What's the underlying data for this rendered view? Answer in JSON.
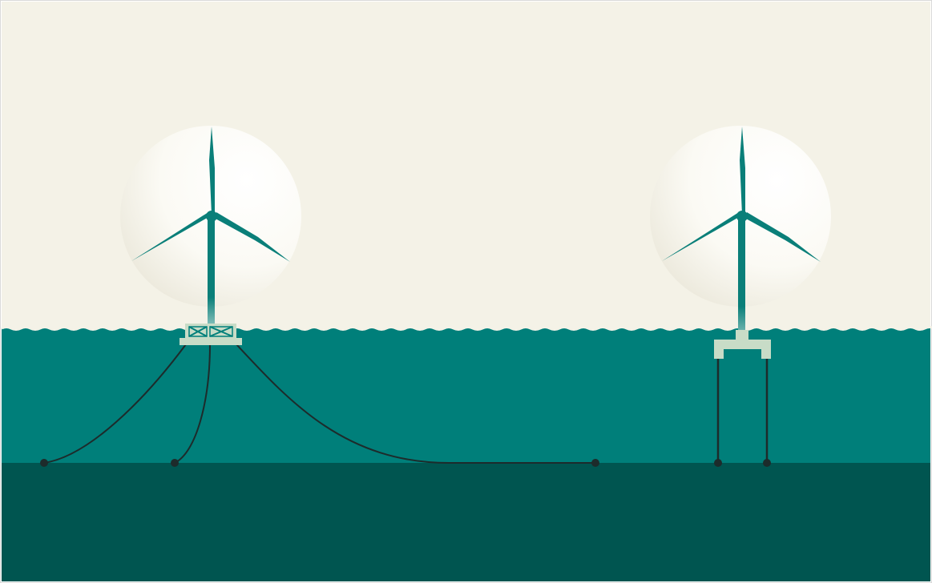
{
  "colors": {
    "sky": "#f4f2e7",
    "sea": "#007f7a",
    "seabed": "#005550",
    "turbine": "#0a7f79",
    "platform": "#c8dcc7",
    "mooring_line": "#1d2b2b",
    "anchor": "#1d2b2b",
    "rotor_glow": "#ffffff",
    "frame": "#d9d9d9"
  },
  "icons": {
    "left_turbine": "floating-turbine-icon",
    "right_turbine": "tension-leg-turbine-icon"
  }
}
